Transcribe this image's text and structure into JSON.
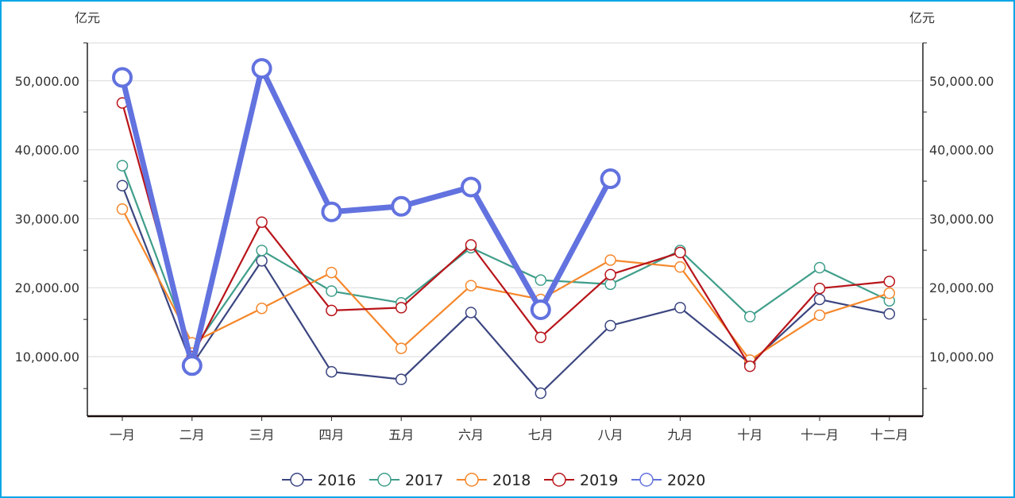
{
  "chart_data": {
    "type": "line",
    "y_unit_left": "亿元",
    "y_unit_right": "亿元",
    "categories": [
      "一月",
      "二月",
      "三月",
      "四月",
      "五月",
      "六月",
      "七月",
      "八月",
      "九月",
      "十月",
      "十一月",
      "十二月"
    ],
    "y_ticks": [
      "10,000.00",
      "20,000.00",
      "30,000.00",
      "40,000.00",
      "50,000.00"
    ],
    "y_tick_values": [
      10000,
      20000,
      30000,
      40000,
      50000
    ],
    "ylim": [
      1000,
      55000
    ],
    "legend_position": "bottom-center",
    "series": [
      {
        "name": "2016",
        "color": "#3b4580",
        "emphasis": false,
        "values": [
          34800,
          8800,
          23900,
          7800,
          6700,
          16400,
          4700,
          14500,
          17100,
          9000,
          18300,
          16200
        ]
      },
      {
        "name": "2017",
        "color": "#3f9e8a",
        "emphasis": false,
        "values": [
          37700,
          10800,
          25400,
          19500,
          17800,
          25800,
          21100,
          20500,
          25400,
          15800,
          22900,
          18100
        ]
      },
      {
        "name": "2018",
        "color": "#f5872b",
        "emphasis": false,
        "values": [
          31400,
          12000,
          17000,
          22200,
          11200,
          20300,
          18300,
          24000,
          23000,
          9500,
          16000,
          19200
        ]
      },
      {
        "name": "2019",
        "color": "#b8141a",
        "emphasis": false,
        "values": [
          46800,
          10000,
          29500,
          16700,
          17100,
          26200,
          12800,
          21900,
          25100,
          8600,
          19900,
          20900
        ]
      },
      {
        "name": "2020",
        "color": "#6272df",
        "emphasis": true,
        "values": [
          50500,
          8700,
          51800,
          31000,
          31800,
          34600,
          16800,
          35800,
          null,
          null,
          null,
          null
        ]
      }
    ]
  }
}
